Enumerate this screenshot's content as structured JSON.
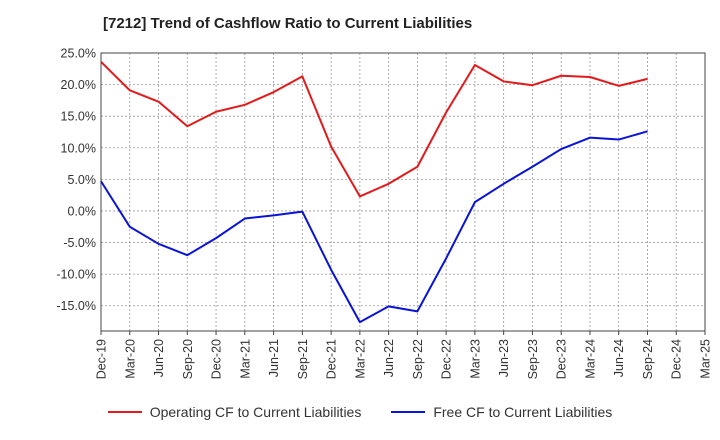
{
  "chart_data": {
    "type": "line",
    "title": "[7212]  Trend of Cashflow Ratio to Current Liabilities",
    "xlabel": "",
    "ylabel": "",
    "categories": [
      "Dec-19",
      "Mar-20",
      "Jun-20",
      "Sep-20",
      "Dec-20",
      "Mar-21",
      "Jun-21",
      "Sep-21",
      "Dec-21",
      "Mar-22",
      "Jun-22",
      "Sep-22",
      "Dec-22",
      "Mar-23",
      "Jun-23",
      "Sep-23",
      "Dec-23",
      "Mar-24",
      "Jun-24",
      "Sep-24",
      "Dec-24",
      "Mar-25"
    ],
    "ylim": [
      -19.0,
      25.0
    ],
    "yticks": [
      25,
      20,
      15,
      10,
      5,
      0,
      -5,
      -10,
      -15
    ],
    "ytick_labels": [
      "25.0%",
      "20.0%",
      "15.0%",
      "10.0%",
      "5.0%",
      "0.0%",
      "-5.0%",
      "-10.0%",
      "-15.0%"
    ],
    "grid": true,
    "legend_position": "bottom",
    "series": [
      {
        "name": "Operating CF to Current Liabilities",
        "color": "#e31a1c",
        "values": [
          23.6,
          19.1,
          17.3,
          13.4,
          15.7,
          16.8,
          18.8,
          21.3,
          10.2,
          2.3,
          4.3,
          7.0,
          15.6,
          23.1,
          20.5,
          19.9,
          21.4,
          21.2,
          19.8,
          20.9,
          null,
          null
        ]
      },
      {
        "name": "Free CF to Current Liabilities",
        "color": "#0a14d6",
        "values": [
          4.7,
          -2.5,
          -5.2,
          -7.0,
          -4.3,
          -1.2,
          -0.7,
          -0.1,
          -9.3,
          -17.6,
          -15.1,
          -15.9,
          -7.5,
          1.4,
          4.3,
          7.0,
          9.8,
          11.6,
          11.3,
          12.6,
          null,
          null
        ]
      }
    ]
  }
}
